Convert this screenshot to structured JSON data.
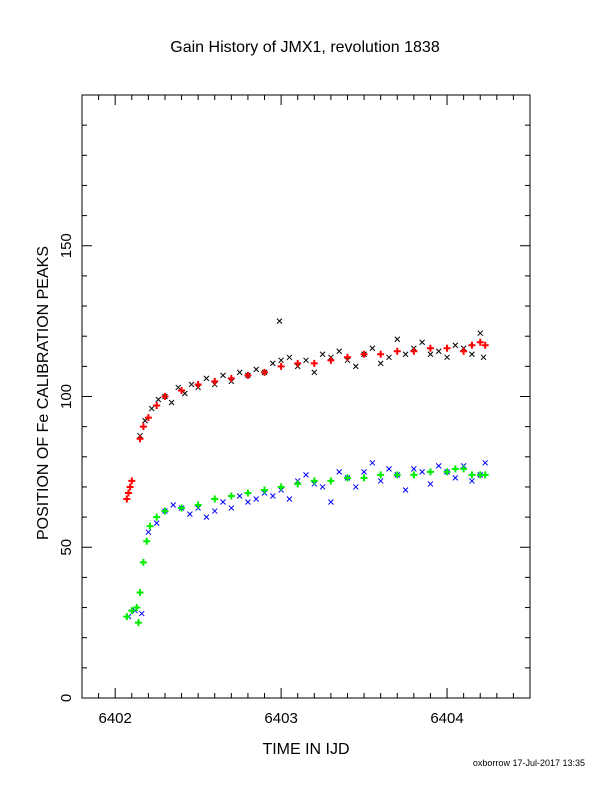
{
  "chart_data": {
    "type": "scatter",
    "title": "Gain History of JMX1, revolution 1838",
    "xlabel": "TIME IN IJD",
    "ylabel": "POSITION OF Fe CALIBRATION PEAKS",
    "xlim": [
      6401.8,
      6404.5
    ],
    "ylim": [
      0,
      200
    ],
    "x_ticks": [
      6402,
      6403,
      6404
    ],
    "y_ticks": [
      0,
      50,
      100,
      150
    ],
    "grid": false,
    "series": [
      {
        "color": "#000000",
        "marker": "x",
        "values": [
          [
            6402.15,
            87
          ],
          [
            6402.18,
            92
          ],
          [
            6402.22,
            96
          ],
          [
            6402.26,
            99
          ],
          [
            6402.3,
            100
          ],
          [
            6402.34,
            98
          ],
          [
            6402.38,
            103
          ],
          [
            6402.42,
            101
          ],
          [
            6402.46,
            104
          ],
          [
            6402.5,
            103
          ],
          [
            6402.55,
            106
          ],
          [
            6402.6,
            104
          ],
          [
            6402.65,
            107
          ],
          [
            6402.7,
            105
          ],
          [
            6402.75,
            108
          ],
          [
            6402.8,
            107
          ],
          [
            6402.85,
            109
          ],
          [
            6402.9,
            108
          ],
          [
            6402.95,
            111
          ],
          [
            6403.0,
            112
          ],
          [
            6402.99,
            125
          ],
          [
            6403.05,
            113
          ],
          [
            6403.1,
            110
          ],
          [
            6403.15,
            112
          ],
          [
            6403.2,
            108
          ],
          [
            6403.25,
            114
          ],
          [
            6403.3,
            113
          ],
          [
            6403.35,
            115
          ],
          [
            6403.4,
            112
          ],
          [
            6403.45,
            110
          ],
          [
            6403.5,
            114
          ],
          [
            6403.55,
            116
          ],
          [
            6403.6,
            111
          ],
          [
            6403.65,
            113
          ],
          [
            6403.7,
            119
          ],
          [
            6403.75,
            114
          ],
          [
            6403.8,
            116
          ],
          [
            6403.85,
            118
          ],
          [
            6403.9,
            114
          ],
          [
            6403.95,
            115
          ],
          [
            6404.0,
            113
          ],
          [
            6404.05,
            117
          ],
          [
            6404.1,
            116
          ],
          [
            6404.15,
            114
          ],
          [
            6404.2,
            121
          ],
          [
            6404.22,
            113
          ]
        ]
      },
      {
        "color": "#ff0000",
        "marker": "+",
        "values": [
          [
            6402.07,
            66
          ],
          [
            6402.08,
            68
          ],
          [
            6402.09,
            70
          ],
          [
            6402.1,
            72
          ],
          [
            6402.15,
            86
          ],
          [
            6402.17,
            90
          ],
          [
            6402.2,
            93
          ],
          [
            6402.25,
            97
          ],
          [
            6402.3,
            100
          ],
          [
            6402.4,
            102
          ],
          [
            6402.5,
            104
          ],
          [
            6402.6,
            105
          ],
          [
            6402.7,
            106
          ],
          [
            6402.8,
            107
          ],
          [
            6402.9,
            108
          ],
          [
            6403.0,
            110
          ],
          [
            6403.1,
            111
          ],
          [
            6403.2,
            111
          ],
          [
            6403.3,
            112
          ],
          [
            6403.4,
            113
          ],
          [
            6403.5,
            114
          ],
          [
            6403.6,
            114
          ],
          [
            6403.7,
            115
          ],
          [
            6403.8,
            115
          ],
          [
            6403.9,
            116
          ],
          [
            6404.0,
            116
          ],
          [
            6404.1,
            115
          ],
          [
            6404.15,
            117
          ],
          [
            6404.2,
            118
          ],
          [
            6404.23,
            117
          ]
        ]
      },
      {
        "color": "#0000ff",
        "marker": "x",
        "values": [
          [
            6402.08,
            27
          ],
          [
            6402.12,
            29
          ],
          [
            6402.16,
            28
          ],
          [
            6402.2,
            55
          ],
          [
            6402.25,
            58
          ],
          [
            6402.3,
            62
          ],
          [
            6402.35,
            64
          ],
          [
            6402.4,
            63
          ],
          [
            6402.45,
            61
          ],
          [
            6402.5,
            63
          ],
          [
            6402.55,
            60
          ],
          [
            6402.6,
            62
          ],
          [
            6402.65,
            65
          ],
          [
            6402.7,
            63
          ],
          [
            6402.75,
            67
          ],
          [
            6402.8,
            65
          ],
          [
            6402.85,
            66
          ],
          [
            6402.9,
            68
          ],
          [
            6402.95,
            67
          ],
          [
            6403.0,
            69
          ],
          [
            6403.05,
            66
          ],
          [
            6403.1,
            72
          ],
          [
            6403.15,
            74
          ],
          [
            6403.2,
            71
          ],
          [
            6403.25,
            70
          ],
          [
            6403.3,
            65
          ],
          [
            6403.35,
            75
          ],
          [
            6403.4,
            73
          ],
          [
            6403.45,
            70
          ],
          [
            6403.5,
            75
          ],
          [
            6403.55,
            78
          ],
          [
            6403.6,
            72
          ],
          [
            6403.65,
            76
          ],
          [
            6403.7,
            74
          ],
          [
            6403.75,
            69
          ],
          [
            6403.8,
            76
          ],
          [
            6403.85,
            75
          ],
          [
            6403.9,
            71
          ],
          [
            6403.95,
            77
          ],
          [
            6404.0,
            75
          ],
          [
            6404.05,
            73
          ],
          [
            6404.1,
            77
          ],
          [
            6404.15,
            72
          ],
          [
            6404.2,
            74
          ],
          [
            6404.23,
            78
          ]
        ]
      },
      {
        "color": "#00ee00",
        "marker": "+",
        "values": [
          [
            6402.07,
            27
          ],
          [
            6402.1,
            29
          ],
          [
            6402.13,
            30
          ],
          [
            6402.14,
            25
          ],
          [
            6402.15,
            35
          ],
          [
            6402.17,
            45
          ],
          [
            6402.19,
            52
          ],
          [
            6402.21,
            57
          ],
          [
            6402.25,
            60
          ],
          [
            6402.3,
            62
          ],
          [
            6402.4,
            63
          ],
          [
            6402.5,
            64
          ],
          [
            6402.6,
            66
          ],
          [
            6402.7,
            67
          ],
          [
            6402.8,
            68
          ],
          [
            6402.9,
            69
          ],
          [
            6403.0,
            70
          ],
          [
            6403.1,
            71
          ],
          [
            6403.2,
            72
          ],
          [
            6403.3,
            72
          ],
          [
            6403.4,
            73
          ],
          [
            6403.5,
            73
          ],
          [
            6403.6,
            74
          ],
          [
            6403.7,
            74
          ],
          [
            6403.8,
            74
          ],
          [
            6403.9,
            75
          ],
          [
            6404.0,
            75
          ],
          [
            6404.05,
            76
          ],
          [
            6404.1,
            76
          ],
          [
            6404.15,
            74
          ],
          [
            6404.2,
            74
          ],
          [
            6404.23,
            74
          ]
        ]
      }
    ]
  },
  "footer": "oxborrow 17-Jul-2017 13:35"
}
